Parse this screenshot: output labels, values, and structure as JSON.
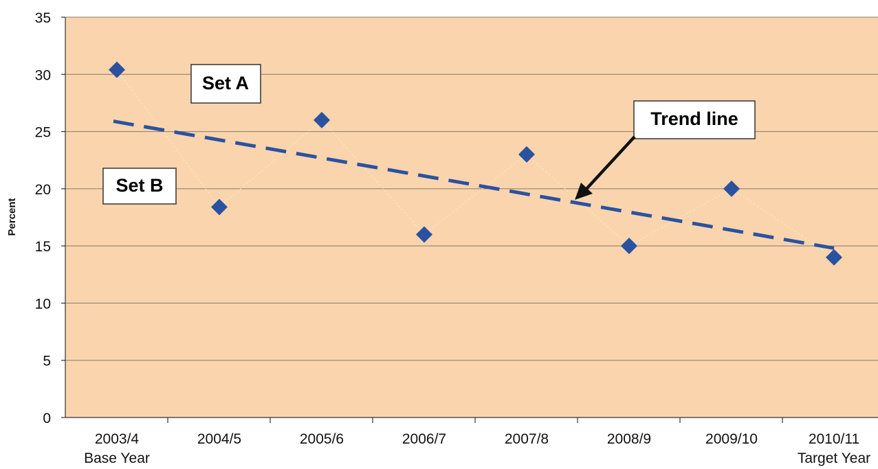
{
  "chart_data": {
    "type": "scatter",
    "ylabel": "Percent",
    "ylim": [
      0,
      35
    ],
    "yticks": [
      0,
      5,
      10,
      15,
      20,
      25,
      30,
      35
    ],
    "grid": true,
    "categories": [
      [
        "2003/4",
        "Base Year"
      ],
      [
        "2004/5"
      ],
      [
        "2005/6"
      ],
      [
        "2006/7"
      ],
      [
        "2007/8"
      ],
      [
        "2008/9"
      ],
      [
        "2009/10"
      ],
      [
        "2010/11",
        "Target Year"
      ]
    ],
    "series": [
      {
        "values": [
          30.4,
          18.4,
          26.0,
          16.0,
          23.0,
          15.0,
          20.0,
          14.0
        ]
      }
    ],
    "trend_line": {
      "start": 25.9,
      "end": 14.8
    },
    "annotations": [
      {
        "text": "Set A"
      },
      {
        "text": "Set B"
      },
      {
        "text": "Trend line"
      }
    ],
    "colors": {
      "plot_background": "#f9d4ad",
      "marker": "#2a52a0",
      "trend": "#2a52a0",
      "connector": "#f4ecc6",
      "gridline": "#8a7a66",
      "arrow": "#111111"
    }
  }
}
